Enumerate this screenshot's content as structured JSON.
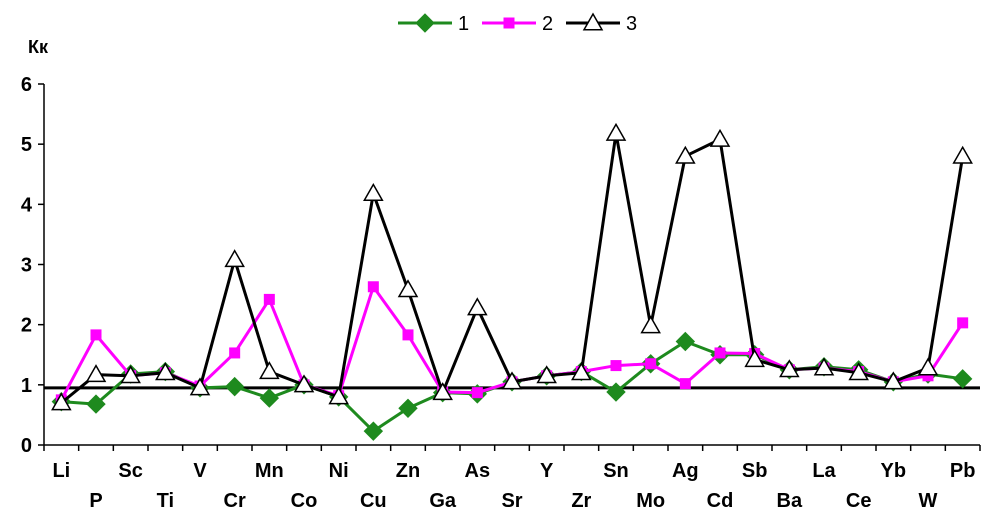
{
  "chart_data": {
    "type": "line",
    "title": "",
    "ylabel": "Кк",
    "xlabel": "",
    "ylim": [
      0,
      6
    ],
    "yticks": [
      "0",
      "1",
      "2",
      "3",
      "4",
      "5",
      "6"
    ],
    "grid": false,
    "legend_position": "top-center",
    "reference_line": {
      "y": 0.95,
      "color": "#000000"
    },
    "categories": [
      "Li",
      "P",
      "Sc",
      "Ti",
      "V",
      "Cr",
      "Mn",
      "Co",
      "Ni",
      "Cu",
      "Zn",
      "Ga",
      "As",
      "Sr",
      "Y",
      "Zr",
      "Sn",
      "Mo",
      "Ag",
      "Cd",
      "Sb",
      "Ba",
      "La",
      "Ce",
      "Yb",
      "W",
      "Pb"
    ],
    "series": [
      {
        "name": "1",
        "color": "#1e8a1e",
        "marker": "diamond",
        "values": [
          0.72,
          0.68,
          1.18,
          1.22,
          0.95,
          0.97,
          0.78,
          1.0,
          0.8,
          0.23,
          0.61,
          0.87,
          0.85,
          1.05,
          1.15,
          1.22,
          0.88,
          1.35,
          1.72,
          1.5,
          1.5,
          1.25,
          1.3,
          1.25,
          1.05,
          1.18,
          1.1
        ]
      },
      {
        "name": "2",
        "color": "#ff00ff",
        "marker": "square",
        "values": [
          0.75,
          1.83,
          1.15,
          1.2,
          0.98,
          1.53,
          2.42,
          1.0,
          0.82,
          2.63,
          1.83,
          0.88,
          0.87,
          1.05,
          1.15,
          1.22,
          1.32,
          1.35,
          1.02,
          1.53,
          1.52,
          1.25,
          1.28,
          1.22,
          1.05,
          1.15,
          2.03
        ]
      },
      {
        "name": "3",
        "color": "#000000",
        "marker": "triangle",
        "values": [
          0.7,
          1.17,
          1.15,
          1.2,
          0.95,
          3.08,
          1.22,
          1.0,
          0.8,
          4.18,
          2.58,
          0.87,
          2.28,
          1.05,
          1.15,
          1.2,
          5.18,
          1.98,
          4.8,
          5.08,
          1.42,
          1.25,
          1.28,
          1.2,
          1.05,
          1.28,
          4.8
        ]
      }
    ]
  }
}
